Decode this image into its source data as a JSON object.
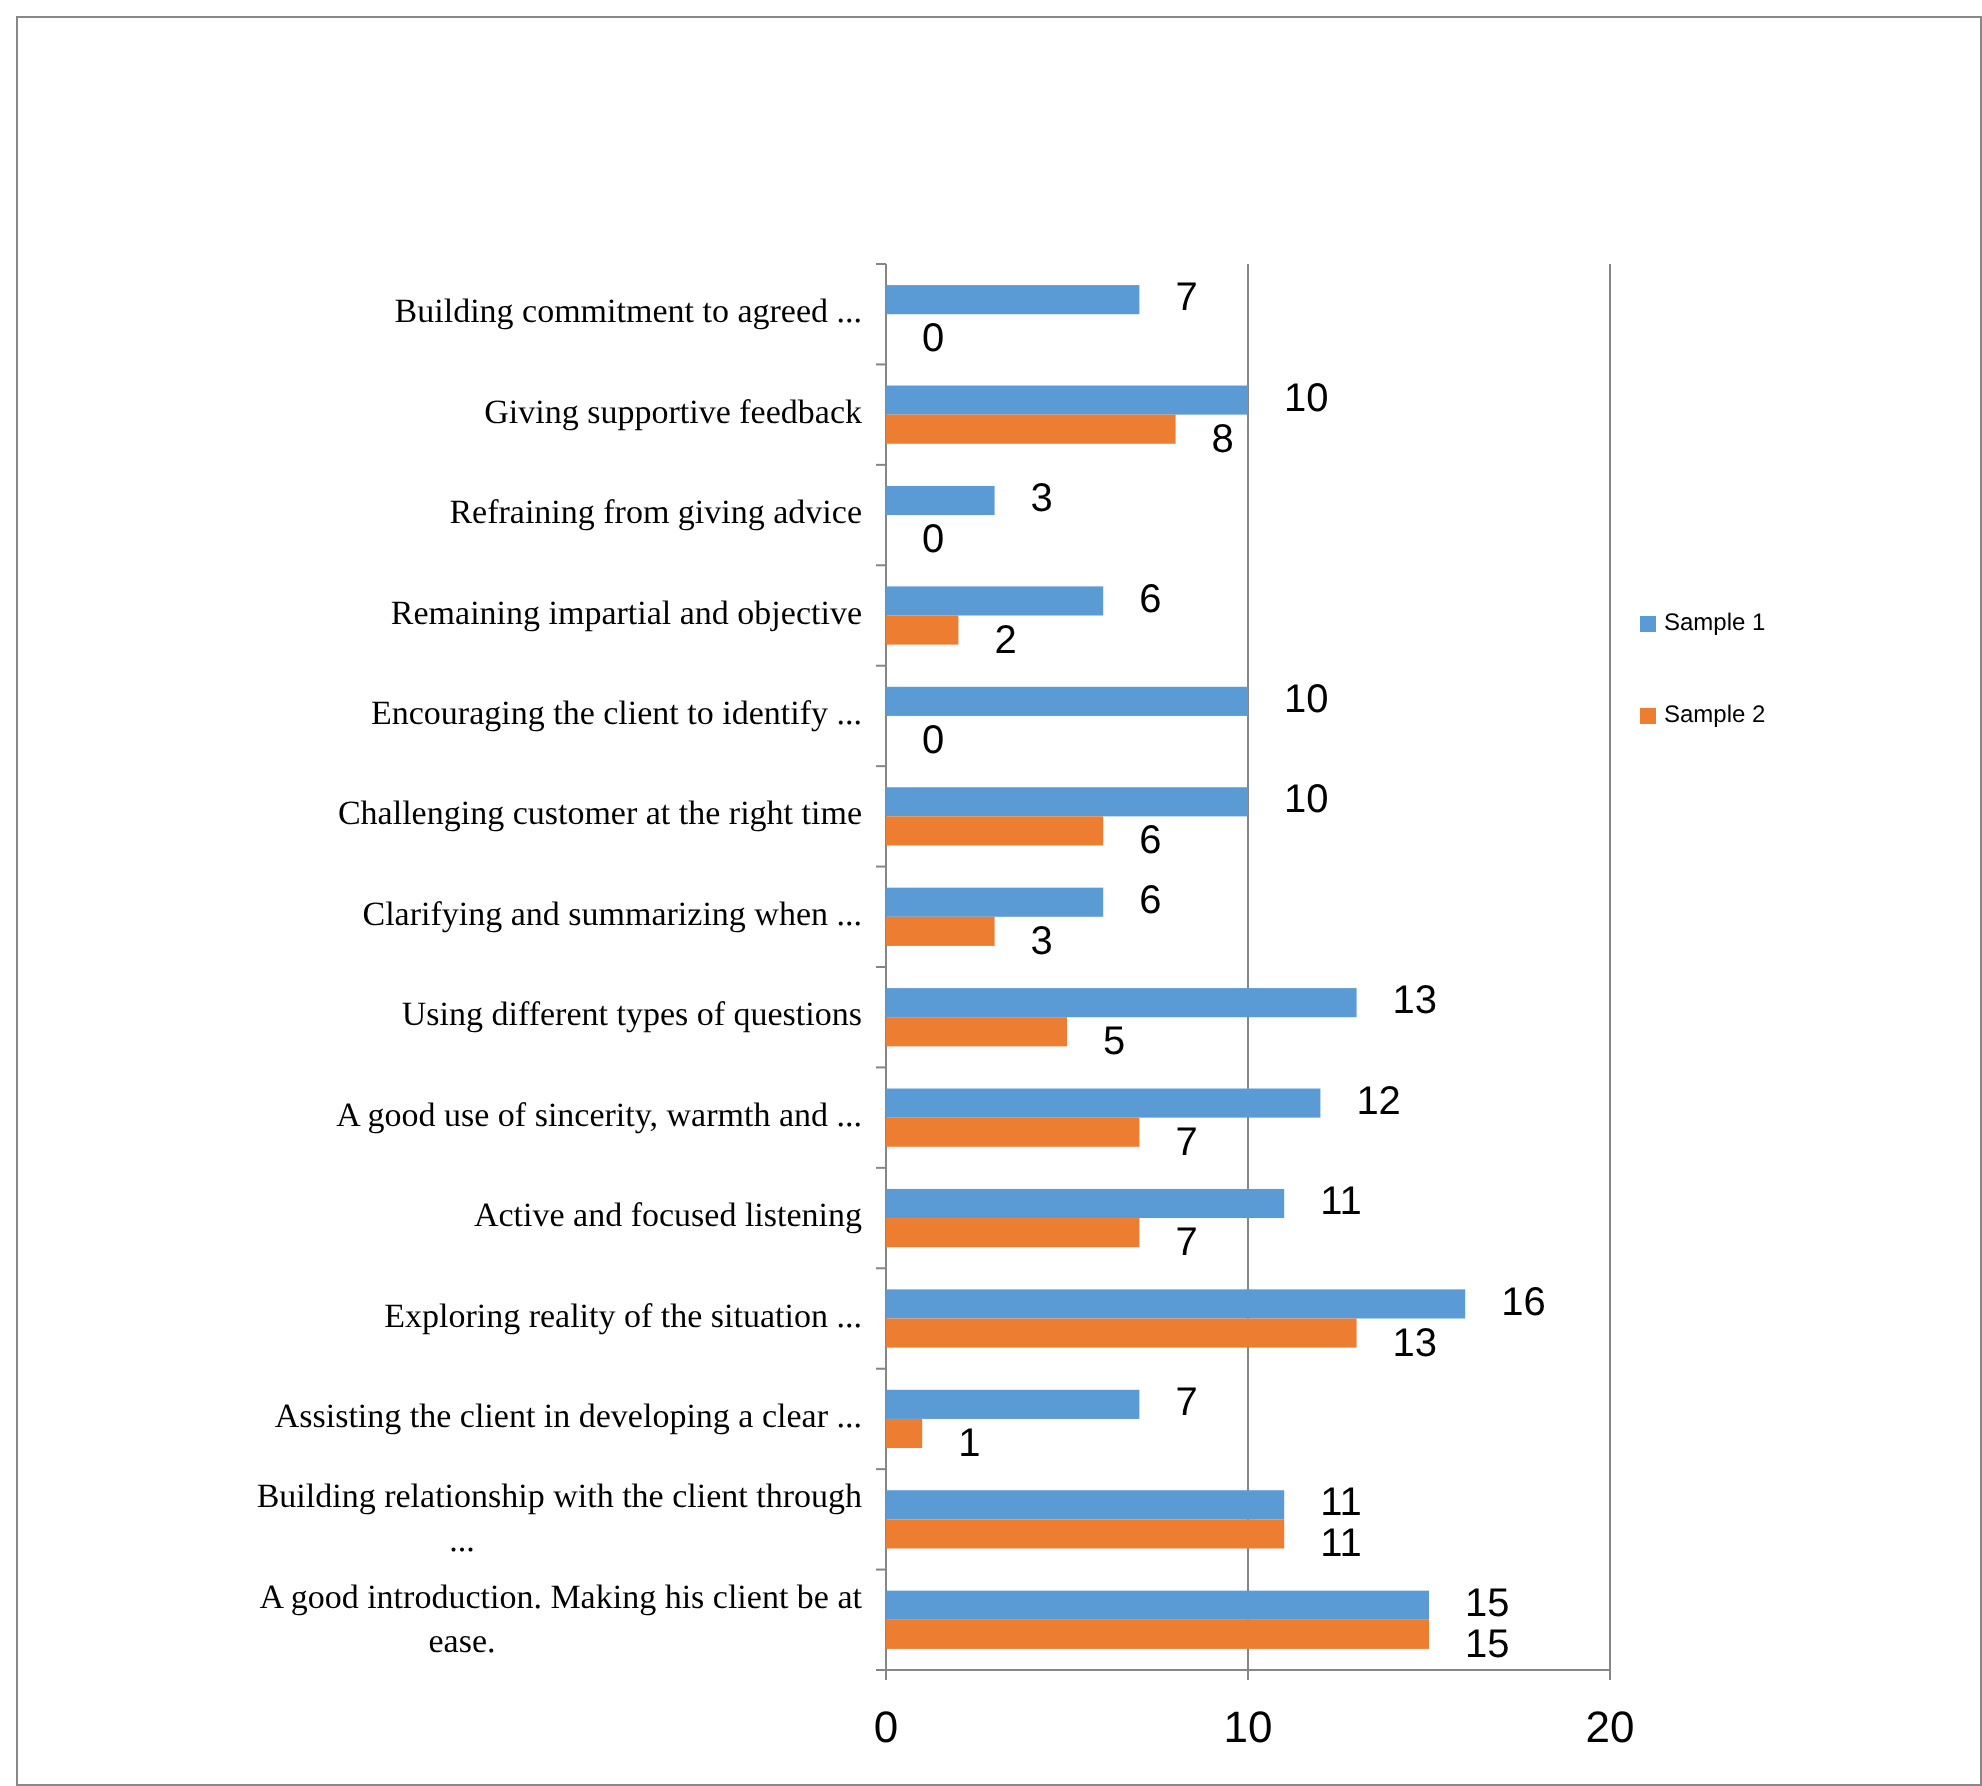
{
  "chart_data": {
    "type": "bar",
    "orientation": "horizontal",
    "categories": [
      "Building commitment to agreed ...",
      "Giving supportive feedback",
      "Refraining from giving advice",
      "Remaining impartial and objective",
      "Encouraging the client to identify ...",
      "Challenging customer at the right time",
      "Clarifying and summarizing when  ...",
      "Using different types of questions",
      "A good use of sincerity, warmth and ...",
      "Active and focused  listening",
      "Exploring reality of the situation ...",
      "Assisting the client in developing a clear ...",
      "Building relationship with the client through ...",
      "A good introduction. Making his client be at ease."
    ],
    "series": [
      {
        "name": "Sample 1",
        "color": "#5b9bd5",
        "values": [
          7,
          10,
          3,
          6,
          10,
          10,
          6,
          13,
          12,
          11,
          16,
          7,
          11,
          15
        ]
      },
      {
        "name": "Sample 2",
        "color": "#ed7d31",
        "values": [
          0,
          8,
          0,
          2,
          0,
          6,
          3,
          5,
          7,
          7,
          13,
          1,
          11,
          15
        ]
      }
    ],
    "xlim": [
      0,
      20
    ],
    "xticks": [
      0,
      10,
      20
    ],
    "grid": "x",
    "legend": "right",
    "data_labels": true
  }
}
